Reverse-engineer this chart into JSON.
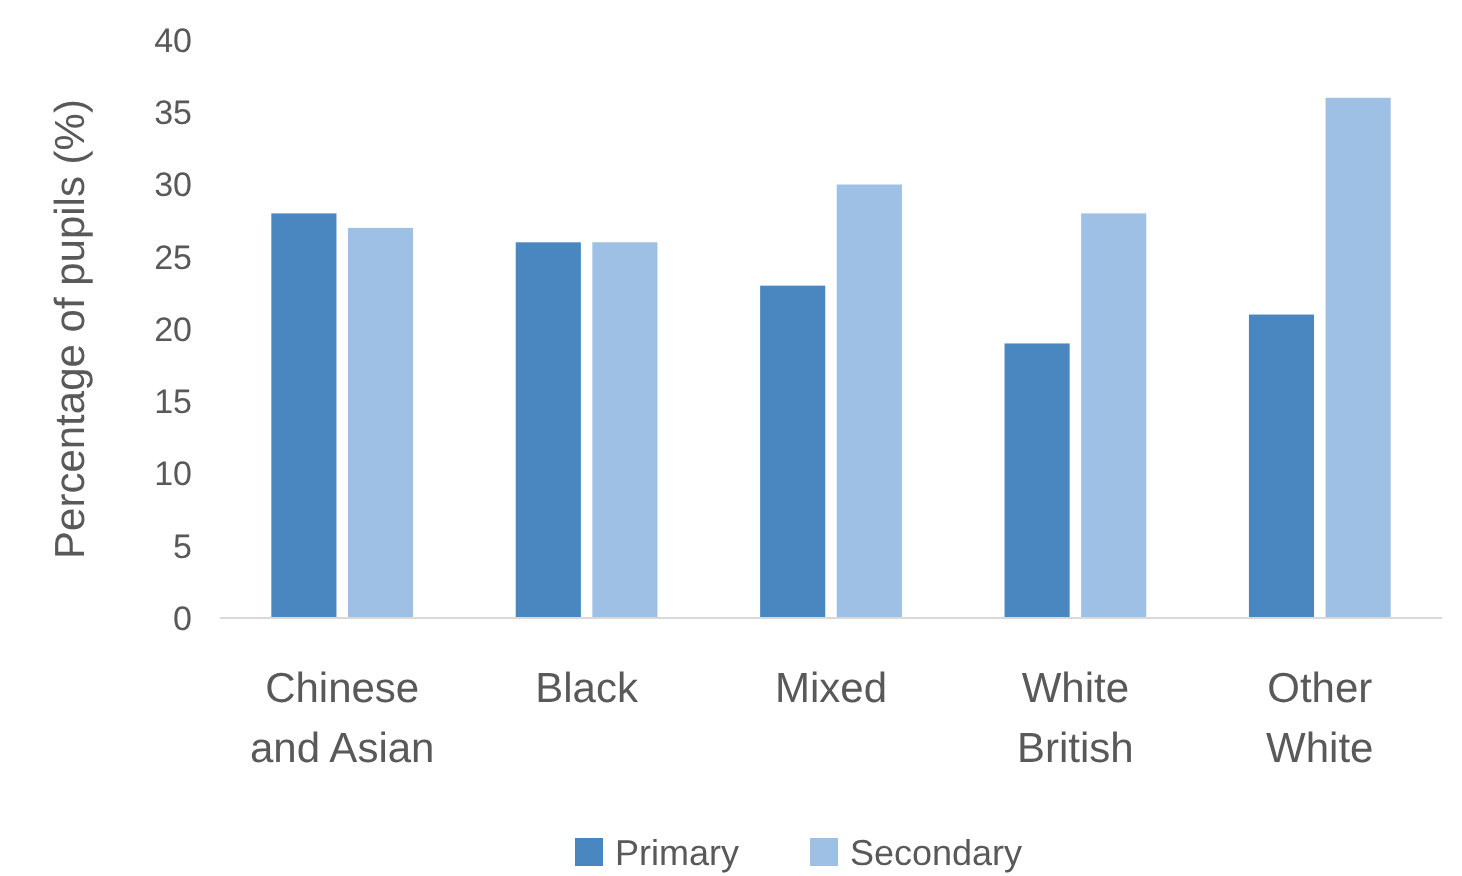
{
  "chart_data": {
    "type": "bar",
    "ylabel": "Percentage of pupils (%)",
    "categories": [
      "Chinese and Asian",
      "Black",
      "Mixed",
      "White British",
      "Other White"
    ],
    "series": [
      {
        "name": "Primary",
        "color": "#4a86c0",
        "values": [
          28,
          26,
          23,
          19,
          21
        ]
      },
      {
        "name": "Secondary",
        "color": "#9dc0e4",
        "values": [
          27,
          26,
          30,
          28,
          36
        ]
      }
    ],
    "ylim": [
      0,
      40
    ],
    "yticks": [
      0,
      5,
      10,
      15,
      20,
      25,
      30,
      35,
      40
    ],
    "grid": false,
    "legend": "bottom"
  }
}
